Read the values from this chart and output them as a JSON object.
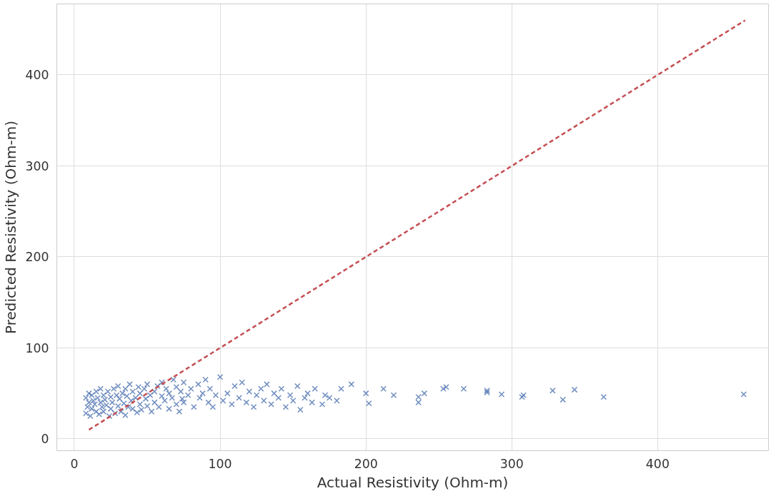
{
  "chart_data": {
    "type": "scatter",
    "xlabel": "Actual Resistivity (Ohm-m)",
    "ylabel": "Predicted Resistivity (Ohm-m)",
    "xlim": [
      -12,
      476
    ],
    "ylim": [
      -13,
      478
    ],
    "xticks": [
      0,
      100,
      200,
      300,
      400
    ],
    "yticks": [
      0,
      100,
      200,
      300,
      400
    ],
    "grid": true,
    "series": [
      {
        "marker": "cross",
        "color": "#4c72b0",
        "x": [
          8,
          8,
          9,
          10,
          10,
          11,
          12,
          12,
          13,
          14,
          15,
          15,
          16,
          17,
          18,
          18,
          19,
          20,
          20,
          21,
          22,
          23,
          24,
          25,
          25,
          26,
          27,
          28,
          29,
          30,
          30,
          31,
          32,
          33,
          34,
          35,
          35,
          36,
          37,
          38,
          39,
          40,
          40,
          42,
          43,
          44,
          45,
          45,
          46,
          48,
          49,
          50,
          50,
          52,
          53,
          55,
          55,
          57,
          58,
          60,
          60,
          62,
          63,
          65,
          65,
          67,
          68,
          70,
          70,
          72,
          73,
          74,
          75,
          75,
          78,
          80,
          82,
          85,
          86,
          88,
          90,
          92,
          93,
          95,
          97,
          100,
          102,
          105,
          108,
          110,
          113,
          115,
          118,
          120,
          123,
          125,
          128,
          130,
          132,
          135,
          137,
          140,
          142,
          145,
          148,
          150,
          153,
          155,
          158,
          160,
          163,
          165,
          170,
          172,
          175,
          180,
          183,
          190,
          200,
          202,
          212,
          219,
          236,
          236,
          240,
          253,
          255,
          267,
          283,
          283,
          293,
          307,
          308,
          328,
          335,
          343,
          363,
          459
        ],
        "values": [
          28,
          45,
          35,
          50,
          40,
          25,
          48,
          33,
          42,
          38,
          52,
          30,
          45,
          27,
          40,
          55,
          35,
          48,
          30,
          43,
          37,
          52,
          25,
          46,
          33,
          40,
          55,
          28,
          48,
          36,
          58,
          44,
          30,
          50,
          39,
          55,
          26,
          47,
          35,
          60,
          42,
          33,
          52,
          45,
          29,
          57,
          38,
          50,
          32,
          55,
          44,
          36,
          60,
          48,
          30,
          52,
          40,
          58,
          35,
          47,
          62,
          42,
          55,
          33,
          50,
          45,
          65,
          38,
          57,
          30,
          52,
          44,
          62,
          40,
          48,
          55,
          35,
          60,
          45,
          50,
          65,
          40,
          55,
          35,
          48,
          68,
          42,
          50,
          38,
          58,
          45,
          62,
          40,
          52,
          35,
          48,
          55,
          42,
          60,
          38,
          50,
          45,
          55,
          35,
          48,
          42,
          58,
          32,
          45,
          50,
          40,
          55,
          38,
          48,
          45,
          42,
          55,
          60,
          50,
          39,
          55,
          48,
          46,
          40,
          50,
          55,
          57,
          55,
          51,
          53,
          49,
          46,
          48,
          53,
          43,
          54,
          46,
          49
        ]
      },
      {
        "type": "line",
        "marker": "none",
        "color": "#c44e52",
        "line_style": "dashed",
        "x": [
          10,
          460
        ],
        "values": [
          10,
          460
        ]
      }
    ]
  }
}
